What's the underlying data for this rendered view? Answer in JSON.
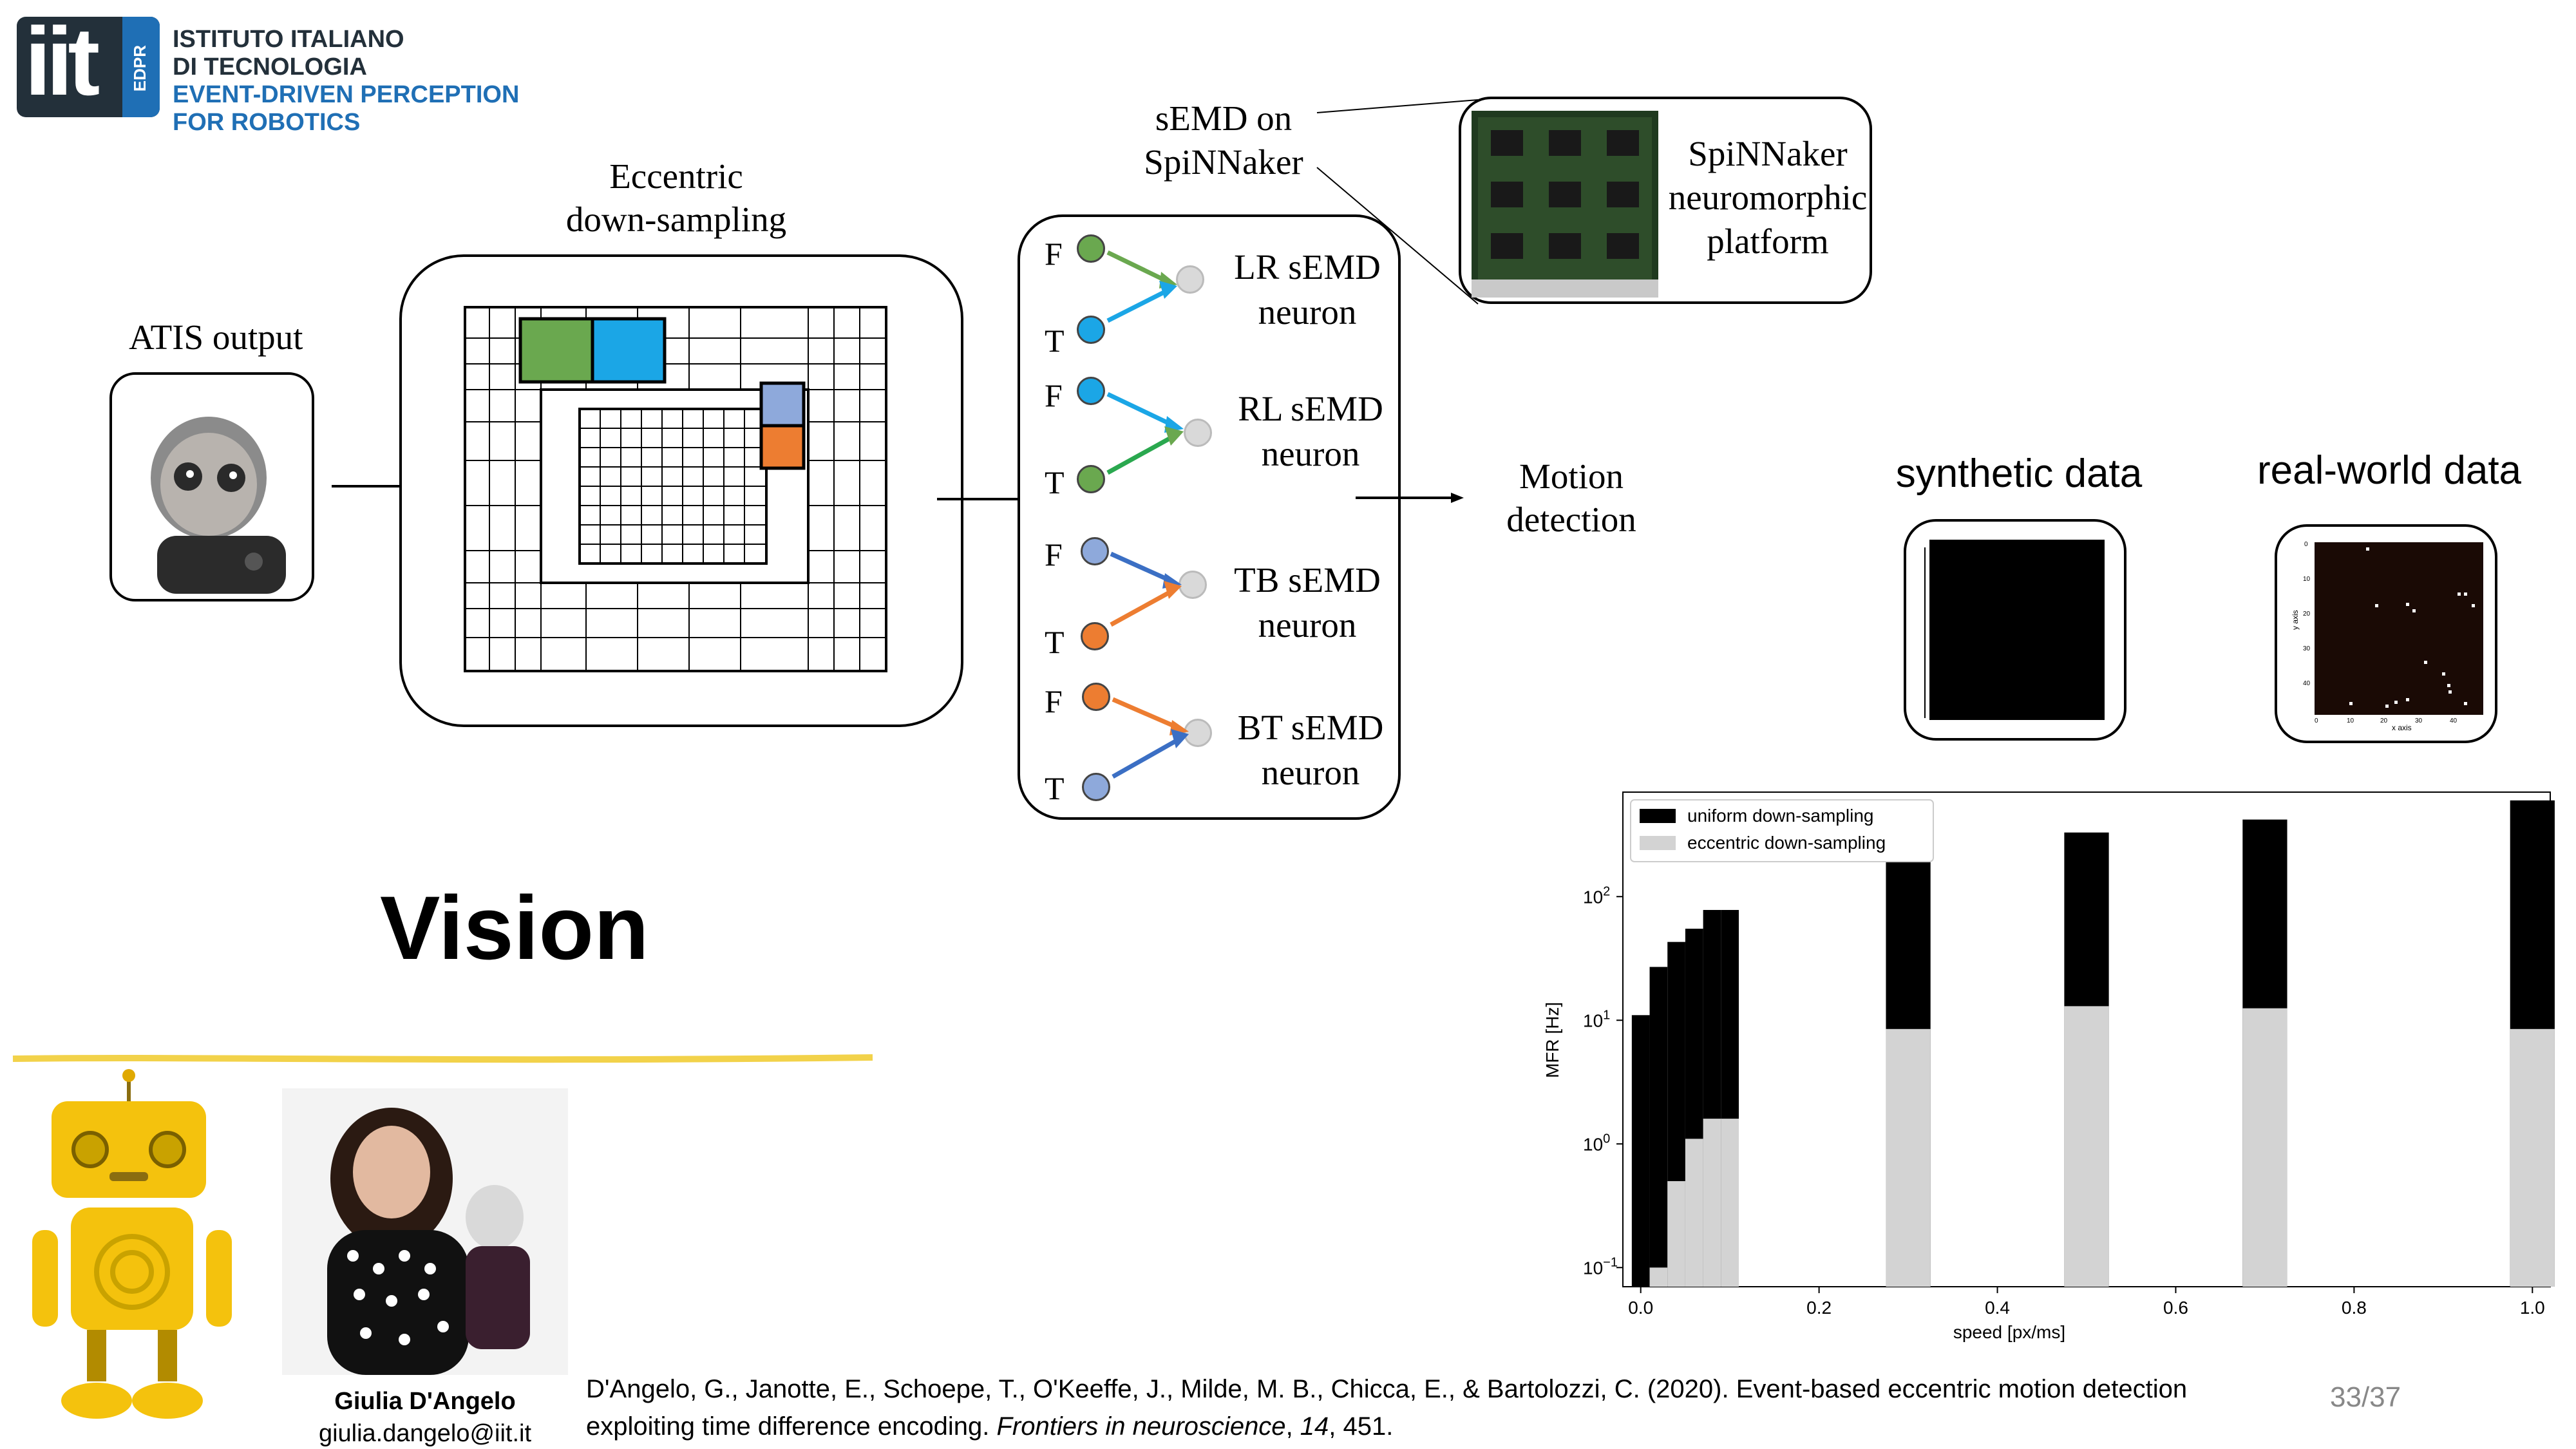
{
  "logo": {
    "letters": "iit",
    "side_tag": "EDPR",
    "lines": [
      "ISTITUTO ITALIANO",
      "DI TECNOLOGIA",
      "EVENT-DRIVEN PERCEPTION",
      "FOR ROBOTICS"
    ],
    "colors": {
      "dark": "#23303a",
      "blue": "#1f6fb5"
    }
  },
  "diagram": {
    "atis_label": "ATIS output",
    "eccentric_label_1": "Eccentric",
    "eccentric_label_2": "down-sampling",
    "semd_label_1": "sEMD on",
    "semd_label_2": "SpiNNaker",
    "spinnaker_label": [
      "SpiNNaker",
      "neuromorphic",
      "platform"
    ],
    "motion_label": [
      "Motion",
      "detection"
    ],
    "neurons": [
      {
        "f": "F",
        "t": "T",
        "name": "LR sEMD",
        "sub": "neuron",
        "f_color": "#6aa84f",
        "t_color": "#1ba6e6"
      },
      {
        "f": "F",
        "t": "T",
        "name": "RL sEMD",
        "sub": "neuron",
        "f_color": "#1ba6e6",
        "t_color": "#6aa84f"
      },
      {
        "f": "F",
        "t": "T",
        "name": "TB sEMD",
        "sub": "neuron",
        "f_color": "#8ea9db",
        "t_color": "#ed7d31"
      },
      {
        "f": "F",
        "t": "T",
        "name": "BT sEMD",
        "sub": "neuron",
        "f_color": "#ed7d31",
        "t_color": "#8ea9db"
      }
    ],
    "colors": {
      "green": "#6aa84f",
      "cyan": "#1ba6e6",
      "lavender": "#8ea9db",
      "orange": "#ed7d31",
      "grey_node": "#d9d9d9"
    }
  },
  "thumbs": {
    "synthetic_label": "synthetic data",
    "realworld_label": "real-world data",
    "realworld_axis_x": "x axis",
    "realworld_axis_y": "y axis",
    "realworld_ticks_x": [
      "0",
      "10",
      "20",
      "30",
      "40"
    ],
    "realworld_ticks_y": [
      "0",
      "10",
      "20",
      "30",
      "40"
    ]
  },
  "title": "Vision",
  "author": {
    "name": "Giulia D'Angelo",
    "email": "giulia.dangelo@iit.it"
  },
  "citation": {
    "part1": "D'Angelo, G., Janotte, E., Schoepe, T., O'Keeffe, J., Milde, M. B., Chicca, E., & Bartolozzi, C. (2020). Event-based eccentric motion detection",
    "part2": "exploiting time difference encoding. ",
    "journal": "Frontiers in neuroscience",
    "sep": ", ",
    "volume": "14",
    "pages": ", 451."
  },
  "page_number": "33/37",
  "chart_data": {
    "type": "bar",
    "xlabel": "speed [px/ms]",
    "ylabel": "MFR [Hz]",
    "yscale": "log",
    "ylim": [
      0.07,
      700
    ],
    "xlim": [
      -0.02,
      1.02
    ],
    "xticks": [
      "0.0",
      "0.2",
      "0.4",
      "0.6",
      "0.8",
      "1.0"
    ],
    "yticks": [
      "10",
      "10",
      "10",
      "10"
    ],
    "ytick_exponents": [
      "2",
      "1",
      "0",
      "−1"
    ],
    "legend_position": "top-left",
    "series": [
      {
        "name": "uniform down-sampling",
        "color": "#000000",
        "points": [
          [
            0.0,
            11
          ],
          [
            0.02,
            27
          ],
          [
            0.04,
            43
          ],
          [
            0.06,
            55
          ],
          [
            0.08,
            78
          ],
          [
            0.1,
            78
          ],
          [
            0.3,
            210
          ],
          [
            0.5,
            330
          ],
          [
            0.7,
            420
          ],
          [
            1.0,
            600
          ]
        ]
      },
      {
        "name": "eccentric down-sampling",
        "color": "#d3d3d3",
        "points": [
          [
            0.0,
            0.07
          ],
          [
            0.02,
            0.1
          ],
          [
            0.04,
            0.5
          ],
          [
            0.06,
            1.1
          ],
          [
            0.08,
            1.6
          ],
          [
            0.1,
            1.6
          ],
          [
            0.3,
            8.5
          ],
          [
            0.5,
            13
          ],
          [
            0.7,
            12.5
          ],
          [
            1.0,
            8.5
          ]
        ]
      }
    ],
    "bar_widths": [
      0.02,
      0.02,
      0.02,
      0.02,
      0.02,
      0.02,
      0.05,
      0.05,
      0.05,
      0.05
    ]
  }
}
